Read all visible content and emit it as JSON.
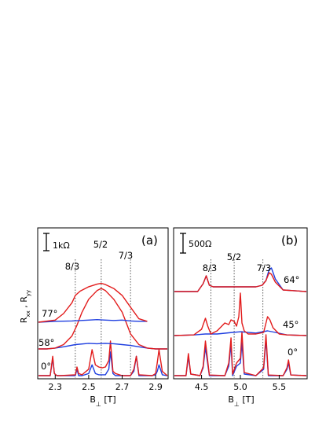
{
  "chart_data": [
    {
      "panel": "(a)",
      "type": "line",
      "xlabel_main": "B",
      "xlabel_sub": "⊥",
      "xlabel_unit": " [T]",
      "ylabel_main": "R",
      "ylabel_sub1": "xx",
      "ylabel_sep": " , R",
      "ylabel_sub2": "yy",
      "xlim": [
        2.2,
        2.97
      ],
      "xticks": [
        2.3,
        2.5,
        2.7,
        2.9
      ],
      "xtick_labels": [
        "2.3",
        "2.5",
        "2.7",
        "2.9"
      ],
      "scalebar_label": "1kΩ",
      "fractions": [
        {
          "label": "8/3",
          "x": 2.42
        },
        {
          "label": "5/2",
          "x": 2.575
        },
        {
          "label": "7/3",
          "x": 2.75
        }
      ],
      "angle_labels": [
        "77°",
        "58°",
        "0°"
      ],
      "offsets": [
        0,
        1.05,
        1.7
      ],
      "curves": [
        {
          "color": "#1f3fe0",
          "angle": "0°",
          "x": [
            2.2,
            2.27,
            2.285,
            2.295,
            2.31,
            2.33,
            2.42,
            2.43,
            2.44,
            2.46,
            2.5,
            2.52,
            2.54,
            2.56,
            2.58,
            2.6,
            2.62,
            2.63,
            2.645,
            2.66,
            2.7,
            2.75,
            2.77,
            2.785,
            2.8,
            2.88,
            2.9,
            2.91,
            2.92,
            2.94,
            2.97
          ],
          "y": [
            0,
            0,
            0.4,
            0.05,
            0,
            0,
            0,
            0.15,
            0,
            0,
            0.05,
            0.25,
            0.05,
            0.02,
            0.02,
            0.02,
            0.15,
            0.55,
            0.05,
            0,
            0,
            0,
            0.1,
            0.45,
            0,
            0,
            0.02,
            0.1,
            0.25,
            0.02,
            0
          ]
        },
        {
          "color": "#e21b1b",
          "angle": "0°",
          "x": [
            2.2,
            2.27,
            2.285,
            2.295,
            2.31,
            2.33,
            2.42,
            2.43,
            2.44,
            2.46,
            2.5,
            2.52,
            2.54,
            2.56,
            2.58,
            2.6,
            2.62,
            2.63,
            2.645,
            2.66,
            2.7,
            2.75,
            2.77,
            2.785,
            2.8,
            2.88,
            2.9,
            2.91,
            2.92,
            2.94,
            2.97
          ],
          "y": [
            0,
            0,
            0.45,
            0.05,
            0,
            0,
            0.02,
            0.2,
            0.05,
            0.02,
            0.15,
            0.6,
            0.25,
            0.2,
            0.18,
            0.2,
            0.35,
            0.8,
            0.1,
            0.05,
            0,
            0,
            0.15,
            0.45,
            0.02,
            0,
            0.05,
            0.3,
            0.6,
            0.1,
            0
          ]
        },
        {
          "color": "#1f3fe0",
          "angle": "58°",
          "x": [
            2.2,
            2.25,
            2.3,
            2.35,
            2.42,
            2.5,
            2.55,
            2.6,
            2.65,
            2.7,
            2.75,
            2.8,
            2.85,
            2.9,
            2.97
          ],
          "y": [
            0,
            0,
            0.02,
            0.05,
            0.1,
            0.13,
            0.12,
            0.13,
            0.12,
            0.1,
            0.08,
            0.05,
            0.02,
            0,
            0
          ]
        },
        {
          "color": "#e21b1b",
          "angle": "58°",
          "x": [
            2.2,
            2.25,
            2.3,
            2.35,
            2.4,
            2.43,
            2.46,
            2.5,
            2.55,
            2.575,
            2.6,
            2.65,
            2.7,
            2.72,
            2.75,
            2.8,
            2.85,
            2.9,
            2.97
          ],
          "y": [
            0,
            0,
            0.02,
            0.1,
            0.3,
            0.55,
            0.85,
            1.15,
            1.35,
            1.4,
            1.35,
            1.15,
            0.85,
            0.65,
            0.35,
            0.1,
            0.02,
            0,
            0
          ]
        },
        {
          "color": "#1f3fe0",
          "angle": "77°",
          "x": [
            2.2,
            2.3,
            2.4,
            2.5,
            2.55,
            2.6,
            2.65,
            2.7,
            2.75,
            2.8,
            2.85
          ],
          "y": [
            0,
            0.02,
            0.03,
            0.05,
            0.06,
            0.05,
            0.04,
            0.05,
            0.03,
            0.02,
            0.02
          ]
        },
        {
          "color": "#e21b1b",
          "angle": "77°",
          "x": [
            2.2,
            2.3,
            2.35,
            2.4,
            2.42,
            2.45,
            2.5,
            2.55,
            2.575,
            2.6,
            2.65,
            2.7,
            2.75,
            2.8,
            2.85
          ],
          "y": [
            0,
            0.05,
            0.2,
            0.45,
            0.62,
            0.72,
            0.82,
            0.88,
            0.9,
            0.87,
            0.78,
            0.62,
            0.35,
            0.08,
            0.02
          ]
        }
      ]
    },
    {
      "panel": "(b)",
      "type": "line",
      "xlabel_main": "B",
      "xlabel_sub": "⊥",
      "xlabel_unit": " [T]",
      "xlim": [
        4.15,
        5.85
      ],
      "xticks": [
        4.5,
        5.0,
        5.5
      ],
      "xtick_labels": [
        "4.5",
        "5.0",
        "5.5"
      ],
      "scalebar_label": "500Ω",
      "fractions": [
        {
          "label": "8/3",
          "x": 4.62
        },
        {
          "label": "5/2",
          "x": 4.92
        },
        {
          "label": "7/3",
          "x": 5.29
        }
      ],
      "angle_labels": [
        "64°",
        "45°",
        "0°"
      ],
      "offsets": [
        0,
        1.4,
        2.45
      ],
      "curves": [
        {
          "color": "#1f3fe0",
          "angle": "0°",
          "x": [
            4.15,
            4.3,
            4.33,
            4.36,
            4.48,
            4.52,
            4.55,
            4.6,
            4.8,
            4.85,
            4.88,
            4.9,
            4.95,
            5.0,
            5.02,
            5.05,
            5.2,
            5.3,
            5.33,
            5.36,
            5.55,
            5.6,
            5.62,
            5.65,
            5.85
          ],
          "y": [
            0,
            0,
            0.6,
            0.05,
            0,
            0.25,
            0.9,
            0,
            0,
            0.3,
            1.0,
            0,
            0.3,
            0.4,
            1.05,
            0.05,
            0,
            0.2,
            1.15,
            0,
            0,
            0.2,
            0.4,
            0.02,
            0
          ]
        },
        {
          "color": "#e21b1b",
          "angle": "0°",
          "x": [
            4.15,
            4.3,
            4.33,
            4.36,
            4.48,
            4.52,
            4.55,
            4.6,
            4.8,
            4.85,
            4.88,
            4.9,
            4.95,
            5.0,
            5.02,
            5.05,
            5.2,
            5.3,
            5.33,
            5.36,
            5.55,
            5.6,
            5.62,
            5.65,
            5.85
          ],
          "y": [
            0,
            0,
            0.7,
            0.05,
            0,
            0.3,
            1.1,
            0.02,
            0,
            0.4,
            1.2,
            0.05,
            0.4,
            0.55,
            1.4,
            0.1,
            0,
            0.25,
            1.3,
            0.02,
            0,
            0.25,
            0.5,
            0.02,
            0
          ]
        },
        {
          "color": "#1f3fe0",
          "angle": "45°",
          "x": [
            4.15,
            4.4,
            4.55,
            4.7,
            4.9,
            5.0,
            5.2,
            5.35,
            5.45,
            5.6,
            5.85
          ],
          "y": [
            0,
            0.02,
            0.05,
            0.05,
            0.1,
            0.12,
            0.08,
            0.15,
            0.1,
            0.02,
            0
          ]
        },
        {
          "color": "#e21b1b",
          "angle": "45°",
          "x": [
            4.15,
            4.4,
            4.5,
            4.55,
            4.58,
            4.62,
            4.7,
            4.8,
            4.85,
            4.88,
            4.92,
            4.95,
            4.98,
            5.0,
            5.02,
            5.05,
            5.1,
            5.2,
            5.3,
            5.35,
            5.38,
            5.42,
            5.5,
            5.6,
            5.85
          ],
          "y": [
            0,
            0.02,
            0.2,
            0.55,
            0.3,
            0.05,
            0.15,
            0.4,
            0.35,
            0.5,
            0.45,
            0.3,
            0.6,
            1.35,
            0.4,
            0.15,
            0.05,
            0.05,
            0.1,
            0.6,
            0.5,
            0.25,
            0.05,
            0.02,
            0
          ]
        },
        {
          "color": "#1f3fe0",
          "angle": "64°",
          "x": [
            4.15,
            4.45,
            4.52,
            4.56,
            4.6,
            4.65,
            4.75,
            4.9,
            5.1,
            5.2,
            5.28,
            5.33,
            5.37,
            5.4,
            5.45,
            5.55,
            5.85
          ],
          "y": [
            0,
            0,
            0.25,
            0.5,
            0.2,
            0.15,
            0.15,
            0.15,
            0.15,
            0.15,
            0.2,
            0.35,
            0.7,
            0.75,
            0.4,
            0.05,
            0
          ]
        },
        {
          "color": "#e21b1b",
          "angle": "64°",
          "x": [
            4.15,
            4.45,
            4.52,
            4.56,
            4.6,
            4.65,
            4.75,
            4.9,
            5.1,
            5.2,
            5.28,
            5.33,
            5.37,
            5.4,
            5.45,
            5.55,
            5.85
          ],
          "y": [
            0,
            0,
            0.25,
            0.5,
            0.2,
            0.15,
            0.15,
            0.15,
            0.15,
            0.15,
            0.2,
            0.35,
            0.6,
            0.55,
            0.3,
            0.05,
            0
          ]
        }
      ]
    }
  ]
}
